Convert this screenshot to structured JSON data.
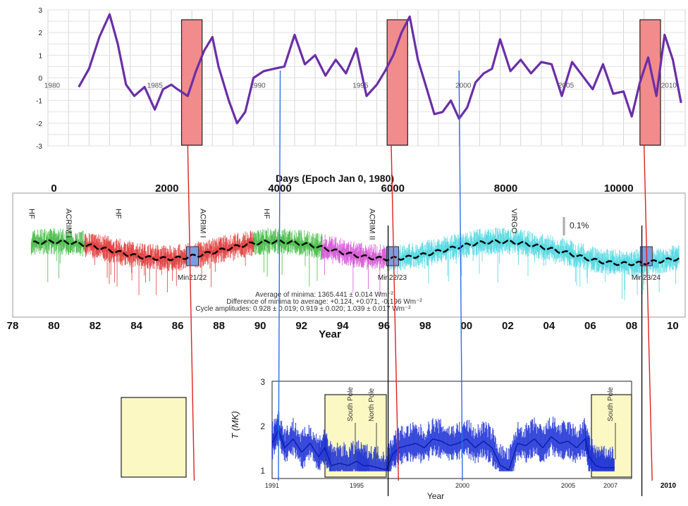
{
  "chart_data": [
    {
      "type": "line",
      "panel": "top-index",
      "xlim": [
        1980,
        2011
      ],
      "ylim": [
        -3,
        3
      ],
      "y_ticks": [
        "3",
        "2",
        "1",
        "0",
        "-1",
        "-2",
        "-3"
      ],
      "x_tick_labels": [
        "1980",
        "1985",
        "1990",
        "1995",
        "2000",
        "2005",
        "2010"
      ],
      "x_tick_values": [
        1980,
        1985,
        1990,
        1995,
        2000,
        2005,
        2010
      ],
      "grid": true,
      "series": [
        {
          "color": "#6a2fa8",
          "x": [
            1981.5,
            1982.0,
            1982.5,
            1983.0,
            1983.4,
            1983.8,
            1984.2,
            1984.7,
            1985.2,
            1985.6,
            1986.0,
            1986.3,
            1986.8,
            1987.2,
            1987.6,
            1988.0,
            1988.3,
            1988.8,
            1989.2,
            1989.6,
            1990.0,
            1990.5,
            1991.0,
            1991.5,
            1992.0,
            1992.5,
            1993.0,
            1993.5,
            1994.0,
            1994.5,
            1995.0,
            1995.5,
            1996.0,
            1996.4,
            1996.8,
            1997.2,
            1997.6,
            1998.0,
            1998.4,
            1998.8,
            1999.2,
            1999.6,
            2000.0,
            2000.4,
            2000.8,
            2001.2,
            2001.6,
            2002.0,
            2002.5,
            2003.0,
            2003.5,
            2004.0,
            2004.5,
            2005.0,
            2005.5,
            2006.0,
            2006.5,
            2007.0,
            2007.5,
            2008.0,
            2008.4,
            2008.8,
            2009.2,
            2009.6,
            2010.0,
            2010.4,
            2010.8
          ],
          "y": [
            -0.4,
            0.4,
            1.8,
            2.8,
            1.5,
            -0.3,
            -0.8,
            -0.4,
            -1.4,
            -0.5,
            -0.3,
            -0.5,
            -0.8,
            0.3,
            1.2,
            1.8,
            0.5,
            -1.0,
            -2.0,
            -1.5,
            0.0,
            0.3,
            0.4,
            0.5,
            1.9,
            0.6,
            1.0,
            0.1,
            0.8,
            0.2,
            1.3,
            -0.8,
            -0.3,
            0.3,
            1.0,
            2.0,
            2.7,
            0.8,
            -0.4,
            -1.6,
            -1.5,
            -1.0,
            -1.8,
            -1.3,
            -0.2,
            0.2,
            0.4,
            1.7,
            0.3,
            0.8,
            0.2,
            0.7,
            0.6,
            -0.8,
            0.7,
            0.1,
            -0.5,
            0.6,
            -0.7,
            -0.6,
            -1.7,
            -0.2,
            0.9,
            -0.8,
            1.9,
            0.8,
            -1.1
          ]
        }
      ],
      "highlighted_intervals": [
        [
          1986.5,
          1987.5
        ],
        [
          1996.5,
          1997.5
        ],
        [
          2008.8,
          2009.8
        ]
      ]
    },
    {
      "type": "line",
      "panel": "middle-tsi-composite",
      "title": "Days (Epoch Jan 0, 1980)",
      "top_axis_ticks": [
        "0",
        "2000",
        "4000",
        "6000",
        "8000",
        "10000"
      ],
      "top_axis_values": [
        0,
        2000,
        4000,
        6000,
        8000,
        10000
      ],
      "xlabel": "Year",
      "x_tick_labels": [
        "78",
        "80",
        "82",
        "84",
        "86",
        "88",
        "90",
        "92",
        "94",
        "96",
        "98",
        "00",
        "02",
        "04",
        "06",
        "08",
        "10"
      ],
      "x_tick_values": [
        1978,
        1980,
        1982,
        1984,
        1986,
        1988,
        1990,
        1992,
        1994,
        1996,
        1998,
        2000,
        2002,
        2004,
        2006,
        2008,
        2010
      ],
      "xlim": [
        1978,
        2010.6
      ],
      "instrument_labels": [
        {
          "text": "HF",
          "x": 1978.8
        },
        {
          "text": "ACRIM I",
          "x": 1980.6
        },
        {
          "text": "HF",
          "x": 1983.0
        },
        {
          "text": "ACRIM I",
          "x": 1987.1
        },
        {
          "text": "HF",
          "x": 1990.2
        },
        {
          "text": "ACRIM II",
          "x": 1995.3
        },
        {
          "text": "VIRGO",
          "x": 2002.2
        }
      ],
      "scale_bar_label": "0.1%",
      "minima_labels": [
        {
          "text": "Min21/22",
          "x": 1986.7
        },
        {
          "text": "Min22/23",
          "x": 1996.4
        },
        {
          "text": "Min23/24",
          "x": 2008.7
        }
      ],
      "annotations": [
        "Average of minima:  1365.441 ± 0.014 Wm⁻²",
        "Difference of minima to average: +0.124, +0.071, -0.196 Wm⁻²",
        "Cycle amplitudes: 0.928 ± 0.019; 0.919 ± 0.020; 1.039 ± 0.017 Wm⁻²"
      ],
      "segments": [
        {
          "color": "#3cb83c",
          "x_range": [
            1978.9,
            1981.5
          ]
        },
        {
          "color": "#e03030",
          "x_range": [
            1981.5,
            1986.5
          ]
        },
        {
          "color": "#e03030",
          "x_range": [
            1986.8,
            1989.7
          ]
        },
        {
          "color": "#3cb83c",
          "x_range": [
            1989.7,
            1993.0
          ]
        },
        {
          "color": "#d34bd3",
          "x_range": [
            1993.0,
            1996.2
          ]
        },
        {
          "color": "#45d6e0",
          "x_range": [
            1996.2,
            2010.3
          ]
        }
      ],
      "trend_color": "#000000"
    },
    {
      "type": "line",
      "panel": "bottom-temperature",
      "ylabel": "T (MK)",
      "y_ticks": [
        "3",
        "2",
        "1"
      ],
      "y_values": [
        3,
        2,
        1
      ],
      "xlabel": "Year",
      "x_tick_labels": [
        "1991",
        "1995",
        "2000",
        "2005",
        "2007"
      ],
      "x_tick_values": [
        1991,
        1995,
        2000,
        2005,
        2007
      ],
      "xlim": [
        1991,
        2008
      ],
      "ylim": [
        0.95,
        3.0
      ],
      "extra_label": "2010",
      "vertical_annotations": [
        {
          "text": "South Pole",
          "x": 1994.8
        },
        {
          "text": "North Pole",
          "x": 1995.8
        },
        {
          "text": "South Pole",
          "x": 2007.1
        }
      ],
      "highlighted_intervals": [
        [
          1993.5,
          1996.4
        ],
        [
          2006.1,
          2008.0
        ]
      ],
      "series": [
        {
          "color": "#1a2fd6",
          "x": [
            1991.0,
            1991.3,
            1991.6,
            1992.0,
            1992.4,
            1992.8,
            1993.2,
            1993.5,
            1993.8,
            1994.2,
            1994.6,
            1995.0,
            1995.3,
            1995.6,
            1996.0,
            1996.4,
            1996.7,
            1997.0,
            1997.4,
            1997.8,
            1998.2,
            1998.6,
            1999.0,
            1999.4,
            1999.8,
            2000.2,
            2000.6,
            2001.0,
            2001.4,
            2001.8,
            2002.2,
            2002.6,
            2003.0,
            2003.4,
            2003.8,
            2004.2,
            2004.6,
            2005.0,
            2005.4,
            2005.8,
            2006.0,
            2006.3,
            2006.6,
            2006.9,
            2007.2
          ],
          "y": [
            1.6,
            1.9,
            1.5,
            1.7,
            1.4,
            1.6,
            1.3,
            1.5,
            1.1,
            1.15,
            1.1,
            1.2,
            1.1,
            1.1,
            1.05,
            1.0,
            1.35,
            1.5,
            1.55,
            1.6,
            1.5,
            1.7,
            1.65,
            1.55,
            1.6,
            1.7,
            1.5,
            1.65,
            1.5,
            1.1,
            1.0,
            1.6,
            1.55,
            1.7,
            1.5,
            1.75,
            1.6,
            1.65,
            1.5,
            1.7,
            1.3,
            1.1,
            1.05,
            1.05,
            1.05
          ]
        }
      ]
    }
  ],
  "overlays": {
    "red_lines_years": [
      1986.8,
      1996.7,
      2009.0
    ],
    "blue_lines_years": [
      1991.3,
      2000.0
    ],
    "black_lines_years": [
      1996.2,
      2008.5
    ]
  }
}
